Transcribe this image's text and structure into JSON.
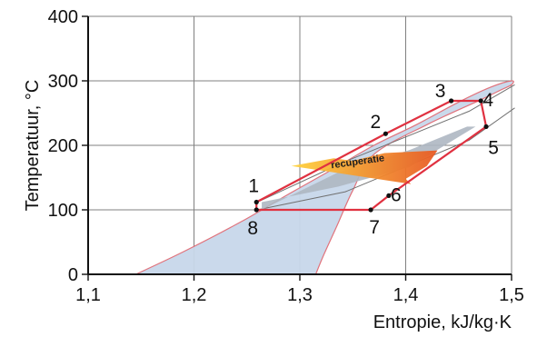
{
  "chart_data": {
    "type": "line",
    "title": "",
    "xlabel": "Entropie, kJ/kg·K",
    "ylabel": "Temperatuur, °C",
    "xlim": [
      1.1,
      1.5
    ],
    "ylim": [
      0,
      400
    ],
    "grid": true,
    "x_ticks": [
      1.1,
      1.2,
      1.3,
      1.4,
      1.5
    ],
    "x_tick_labels": [
      "1,1",
      "1,2",
      "1,3",
      "1,4",
      "1,5"
    ],
    "y_ticks": [
      0,
      100,
      200,
      300,
      400
    ],
    "y_tick_labels": [
      "0",
      "100",
      "200",
      "300",
      "400"
    ],
    "colors": {
      "dome_fill": "#c8d8ea",
      "dome_stroke": "#e06c76",
      "cycle_stroke": "#e03140",
      "recuperation_fill": "#aeb7c2",
      "arrow_start": "#ffd33d",
      "arrow_end": "#e85a24",
      "grid": "#808080",
      "axis": "#111111"
    },
    "saturation_dome": {
      "x": [
        1.145,
        1.19,
        1.245,
        1.29,
        1.33,
        1.37,
        1.41,
        1.45,
        1.48,
        1.5,
        1.5,
        1.49,
        1.47,
        1.42,
        1.37,
        1.35,
        1.335,
        1.322,
        1.315
      ],
      "y": [
        0,
        35,
        82,
        125,
        162,
        200,
        232,
        267,
        290,
        300,
        294,
        286,
        270,
        232,
        186,
        130,
        75,
        28,
        0
      ]
    },
    "isobars": [
      {
        "x": [
          1.26,
          1.343,
          1.46,
          1.503
        ],
        "y": [
          112,
          175,
          253,
          294
        ]
      },
      {
        "x": [
          1.26,
          1.343,
          1.46,
          1.503
        ],
        "y": [
          100,
          128,
          208,
          258
        ]
      }
    ],
    "cycle_points": [
      {
        "label": "1",
        "x": 1.259,
        "y": 112
      },
      {
        "label": "2",
        "x": 1.381,
        "y": 218
      },
      {
        "label": "3",
        "x": 1.443,
        "y": 269
      },
      {
        "label": "4",
        "x": 1.471,
        "y": 269
      },
      {
        "label": "5",
        "x": 1.476,
        "y": 229
      },
      {
        "label": "6",
        "x": 1.384,
        "y": 122
      },
      {
        "label": "7",
        "x": 1.367,
        "y": 100
      },
      {
        "label": "8",
        "x": 1.259,
        "y": 100
      }
    ],
    "recuperation": {
      "region": {
        "x": [
          1.264,
          1.336,
          1.403,
          1.466,
          1.458,
          1.404,
          1.336,
          1.264
        ],
        "y": [
          112,
          136,
          166,
          229,
          229,
          193,
          158,
          100
        ]
      },
      "arrow": {
        "x": [
          1.292,
          1.332,
          1.35,
          1.38,
          1.43,
          1.42,
          1.4,
          1.405
        ],
        "y": [
          168,
          180,
          176,
          188,
          192,
          168,
          148,
          140
        ]
      },
      "label": "recuperatie",
      "label_x": 1.355,
      "label_y": 170
    }
  }
}
